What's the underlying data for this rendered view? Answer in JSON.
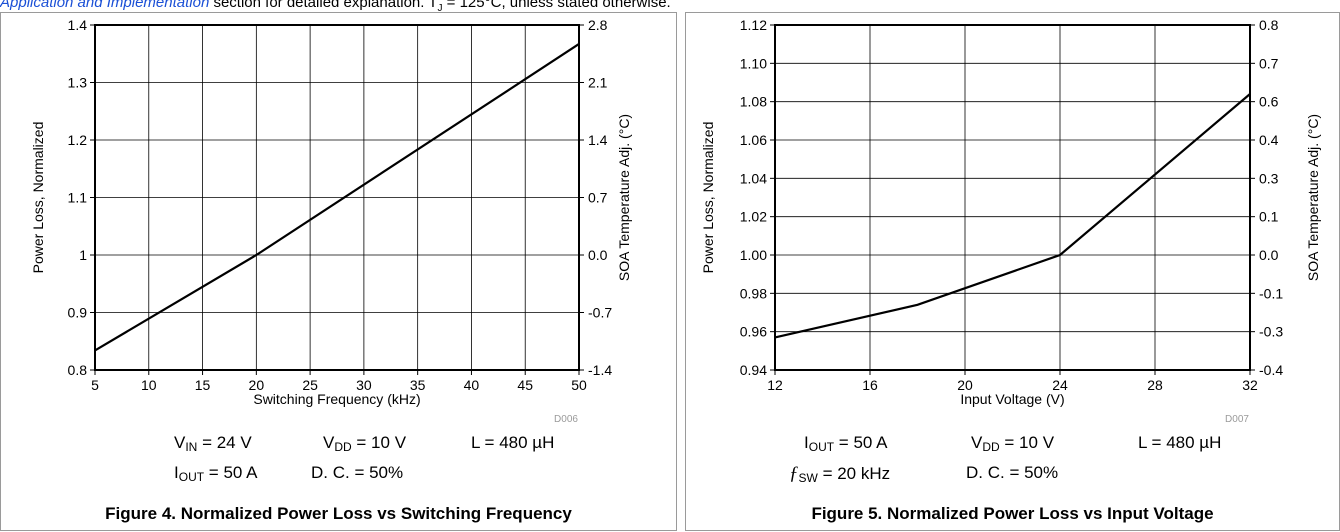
{
  "header": {
    "link_text": "Application and Implementation",
    "rest_text": " section for detailed explanation. T",
    "sub": "J",
    "end_text": " = 125°C, unless stated otherwise."
  },
  "chart_data": [
    {
      "type": "line",
      "id": "D006",
      "caption": "Figure 4. Normalized Power Loss vs Switching Frequency",
      "xlabel": "Switching Frequency (kHz)",
      "ylabel": "Power Loss, Normalized",
      "y2label": "SOA Temperature Adj. (°C)",
      "xlim": [
        5,
        50
      ],
      "ylim": [
        0.8,
        1.4
      ],
      "xticks": [
        5,
        10,
        15,
        20,
        25,
        30,
        35,
        40,
        45,
        50
      ],
      "xtick_labels": [
        "5",
        "10",
        "15",
        "20",
        "25",
        "30",
        "35",
        "40",
        "45",
        "50"
      ],
      "yticks": [
        0.8,
        0.9,
        1.0,
        1.1,
        1.2,
        1.3,
        1.4
      ],
      "ytick_labels": [
        "0.8",
        "0.9",
        "1",
        "1.1",
        "1.2",
        "1.3",
        "1.4"
      ],
      "y2tick_labels": [
        "-1.4",
        "-0.7",
        "0.0",
        "0.7",
        "1.4",
        "2.1",
        "2.8"
      ],
      "grid": true,
      "series": [
        {
          "x": [
            5,
            20,
            50
          ],
          "y": [
            0.834,
            1.0,
            1.367
          ]
        }
      ],
      "conditions": {
        "vin": {
          "sym": "V",
          "sub": "IN",
          "val": " = 24 V"
        },
        "vdd": {
          "sym": "V",
          "sub": "DD",
          "val": " = 10 V"
        },
        "l": "L = 480 µH",
        "iout": {
          "sym": "I",
          "sub": "OUT",
          "val": " = 50 A"
        },
        "dc": "D. C. = 50%"
      }
    },
    {
      "type": "line",
      "id": "D007",
      "caption": "Figure 5. Normalized Power Loss vs Input Voltage",
      "xlabel": "Input Voltage (V)",
      "ylabel": "Power Loss, Normalized",
      "y2label": "SOA Temperature Adj. (°C)",
      "xlim": [
        12,
        32
      ],
      "ylim": [
        0.94,
        1.12
      ],
      "xticks": [
        12,
        16,
        20,
        24,
        28,
        32
      ],
      "xtick_labels": [
        "12",
        "16",
        "20",
        "24",
        "28",
        "32"
      ],
      "yticks": [
        0.94,
        0.96,
        0.98,
        1.0,
        1.02,
        1.04,
        1.06,
        1.08,
        1.1,
        1.12
      ],
      "ytick_labels": [
        "0.94",
        "0.96",
        "0.98",
        "1.00",
        "1.02",
        "1.04",
        "1.06",
        "1.08",
        "1.10",
        "1.12"
      ],
      "y2tick_labels": [
        "-0.4",
        "-0.3",
        "-0.1",
        "0.0",
        "0.1",
        "0.3",
        "0.4",
        "0.6",
        "0.7",
        "0.8"
      ],
      "grid": true,
      "series": [
        {
          "x": [
            12,
            18,
            24,
            32
          ],
          "y": [
            0.957,
            0.974,
            1.0,
            1.084
          ]
        }
      ],
      "conditions": {
        "iout": {
          "sym": "I",
          "sub": "OUT",
          "val": " = 50 A"
        },
        "vdd": {
          "sym": "V",
          "sub": "DD",
          "val": " = 10 V"
        },
        "l": "L = 480 µH",
        "fsw": {
          "sym": "ƒ",
          "sub": "SW",
          "val": " = 20 kHz"
        },
        "dc": "D. C. = 50%"
      }
    }
  ]
}
